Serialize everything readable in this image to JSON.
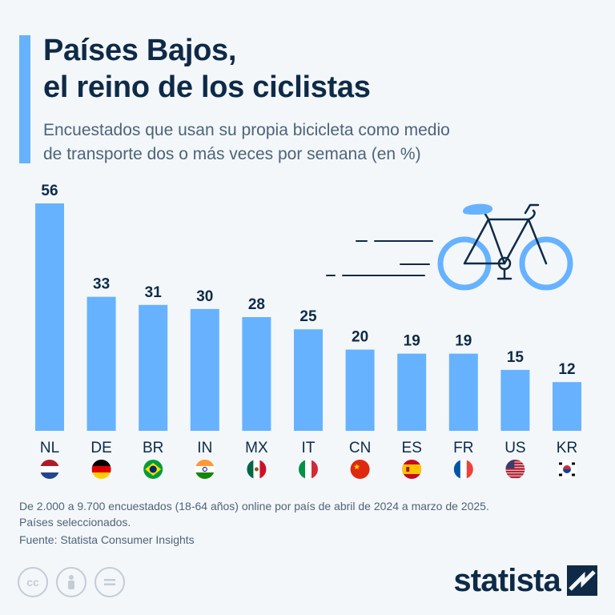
{
  "header": {
    "title_line1": "Países Bajos,",
    "title_line2": "el reino de los ciclistas",
    "subtitle_line1": "Encuestados que usan su propia bicicleta como medio",
    "subtitle_line2": "de transporte dos o más veces por semana (en %)"
  },
  "chart_data": {
    "type": "bar",
    "title": "Países Bajos, el reino de los ciclistas",
    "subtitle": "Encuestados que usan su propia bicicleta como medio de transporte dos o más veces por semana (en %)",
    "categories": [
      "NL",
      "DE",
      "BR",
      "IN",
      "MX",
      "IT",
      "CN",
      "ES",
      "FR",
      "US",
      "KR"
    ],
    "values": [
      56,
      33,
      31,
      30,
      28,
      25,
      20,
      19,
      19,
      15,
      12
    ],
    "flags": [
      "Netherlands",
      "Germany",
      "Brazil",
      "India",
      "Mexico",
      "Italy",
      "China",
      "Spain",
      "France",
      "United States",
      "South Korea"
    ],
    "ylim": [
      0,
      56
    ],
    "grid": false,
    "bar_color": "#66b2ff",
    "value_labels": true
  },
  "footer": {
    "note_line1": "De 2.000 a 9.700 encuestados (18-64 años) online por país de abril de 2024 a marzo de 2025.",
    "note_line2": "Países seleccionados.",
    "source": "Fuente: Statista Consumer Insights",
    "license_icons": [
      "cc-icon",
      "attribution-icon",
      "no-derivatives-icon"
    ],
    "logo_text": "statista"
  },
  "colors": {
    "accent": "#66b2ff",
    "text_dark": "#0e2a47",
    "text_muted": "#4e6379",
    "background": "#f3f7fa"
  },
  "illustration": "bicycle-icon"
}
